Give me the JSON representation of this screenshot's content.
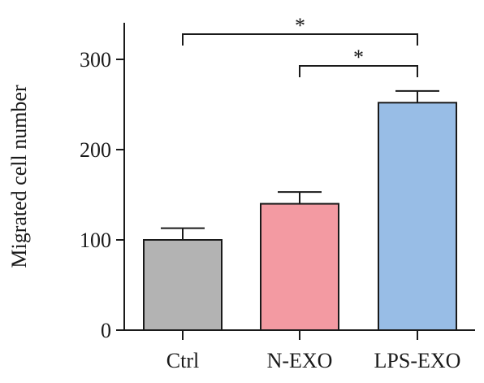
{
  "chart_data": {
    "type": "bar",
    "title": "",
    "xlabel": "",
    "ylabel": "Migrated cell number",
    "categories": [
      "Ctrl",
      "N-EXO",
      "LPS-EXO"
    ],
    "values": [
      100,
      140,
      252
    ],
    "errors": [
      13,
      13,
      13
    ],
    "colors": [
      "#b3b3b3",
      "#f39aa2",
      "#98bde6"
    ],
    "ylim": [
      0,
      340
    ],
    "yticks": [
      0,
      100,
      200,
      300
    ],
    "grid": false,
    "legend": "none",
    "significance": [
      {
        "from": 0,
        "to": 2,
        "label": "*"
      },
      {
        "from": 1,
        "to": 2,
        "label": "*"
      }
    ]
  }
}
